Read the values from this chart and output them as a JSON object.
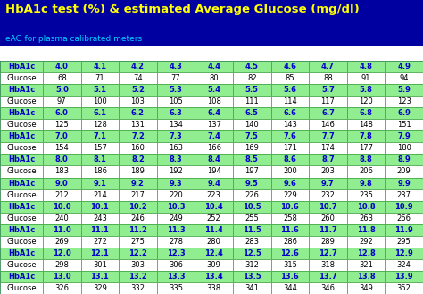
{
  "title": "HbA1c test (%) & estimated Average Glucose (mg/dl)",
  "subtitle": "eAG for plasma calibrated meters",
  "title_bg": "#0000A0",
  "title_color": "#FFFF00",
  "subtitle_color": "#00CFFF",
  "hba1c_bg": "#90EE90",
  "hba1c_text": "#0000CC",
  "glucose_bg": "#FFFFFF",
  "glucose_text": "#000000",
  "border_color": "#44AA44",
  "white_gap_bg": "#FFFFFF",
  "rows": [
    {
      "label": "HbA1c",
      "type": "hba1c",
      "values": [
        "4.0",
        "4.1",
        "4.2",
        "4.3",
        "4.4",
        "4.5",
        "4.6",
        "4.7",
        "4.8",
        "4.9"
      ]
    },
    {
      "label": "Glucose",
      "type": "glucose",
      "values": [
        "68",
        "71",
        "74",
        "77",
        "80",
        "82",
        "85",
        "88",
        "91",
        "94"
      ]
    },
    {
      "label": "HbA1c",
      "type": "hba1c",
      "values": [
        "5.0",
        "5.1",
        "5.2",
        "5.3",
        "5.4",
        "5.5",
        "5.6",
        "5.7",
        "5.8",
        "5.9"
      ]
    },
    {
      "label": "Glucose",
      "type": "glucose",
      "values": [
        "97",
        "100",
        "103",
        "105",
        "108",
        "111",
        "114",
        "117",
        "120",
        "123"
      ]
    },
    {
      "label": "HbA1c",
      "type": "hba1c",
      "values": [
        "6.0",
        "6.1",
        "6.2",
        "6.3",
        "6.4",
        "6.5",
        "6.6",
        "6.7",
        "6.8",
        "6.9"
      ]
    },
    {
      "label": "Glucose",
      "type": "glucose",
      "values": [
        "125",
        "128",
        "131",
        "134",
        "137",
        "140",
        "143",
        "146",
        "148",
        "151"
      ]
    },
    {
      "label": "HbA1c",
      "type": "hba1c",
      "values": [
        "7.0",
        "7.1",
        "7.2",
        "7.3",
        "7.4",
        "7.5",
        "7.6",
        "7.7",
        "7.8",
        "7.9"
      ]
    },
    {
      "label": "Glucose",
      "type": "glucose",
      "values": [
        "154",
        "157",
        "160",
        "163",
        "166",
        "169",
        "171",
        "174",
        "177",
        "180"
      ]
    },
    {
      "label": "HbA1c",
      "type": "hba1c",
      "values": [
        "8.0",
        "8.1",
        "8.2",
        "8.3",
        "8.4",
        "8.5",
        "8.6",
        "8.7",
        "8.8",
        "8.9"
      ]
    },
    {
      "label": "Glucose",
      "type": "glucose",
      "values": [
        "183",
        "186",
        "189",
        "192",
        "194",
        "197",
        "200",
        "203",
        "206",
        "209"
      ]
    },
    {
      "label": "HbA1c",
      "type": "hba1c",
      "values": [
        "9.0",
        "9.1",
        "9.2",
        "9.3",
        "9.4",
        "9.5",
        "9.6",
        "9.7",
        "9.8",
        "9.9"
      ]
    },
    {
      "label": "Glucose",
      "type": "glucose",
      "values": [
        "212",
        "214",
        "217",
        "220",
        "223",
        "226",
        "229",
        "232",
        "235",
        "237"
      ]
    },
    {
      "label": "HbA1c",
      "type": "hba1c",
      "values": [
        "10.0",
        "10.1",
        "10.2",
        "10.3",
        "10.4",
        "10.5",
        "10.6",
        "10.7",
        "10.8",
        "10.9"
      ]
    },
    {
      "label": "Glucose",
      "type": "glucose",
      "values": [
        "240",
        "243",
        "246",
        "249",
        "252",
        "255",
        "258",
        "260",
        "263",
        "266"
      ]
    },
    {
      "label": "HbA1c",
      "type": "hba1c",
      "values": [
        "11.0",
        "11.1",
        "11.2",
        "11.3",
        "11.4",
        "11.5",
        "11.6",
        "11.7",
        "11.8",
        "11.9"
      ]
    },
    {
      "label": "Glucose",
      "type": "glucose",
      "values": [
        "269",
        "272",
        "275",
        "278",
        "280",
        "283",
        "286",
        "289",
        "292",
        "295"
      ]
    },
    {
      "label": "HbA1c",
      "type": "hba1c",
      "values": [
        "12.0",
        "12.1",
        "12.2",
        "12.3",
        "12.4",
        "12.5",
        "12.6",
        "12.7",
        "12.8",
        "12.9"
      ]
    },
    {
      "label": "Glucose",
      "type": "glucose",
      "values": [
        "298",
        "301",
        "303",
        "306",
        "309",
        "312",
        "315",
        "318",
        "321",
        "324"
      ]
    },
    {
      "label": "HbA1c",
      "type": "hba1c",
      "values": [
        "13.0",
        "13.1",
        "13.2",
        "13.3",
        "13.4",
        "13.5",
        "13.6",
        "13.7",
        "13.8",
        "13.9"
      ]
    },
    {
      "label": "Glucose",
      "type": "glucose",
      "values": [
        "326",
        "329",
        "332",
        "335",
        "338",
        "341",
        "344",
        "346",
        "349",
        "352"
      ]
    }
  ]
}
